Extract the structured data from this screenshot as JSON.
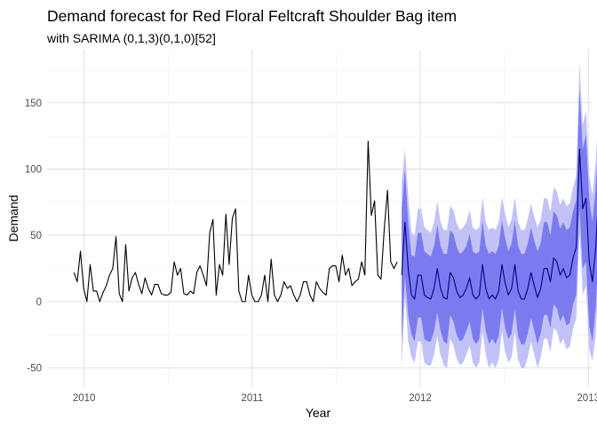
{
  "chart_data": {
    "type": "line",
    "title": "Demand forecast for Red Floral Feltcraft Shoulder Bag item",
    "subtitle": "with SARIMA (0,1,3)(0,1,0)[52]",
    "xlabel": "Year",
    "ylabel": "Demand",
    "xlim": [
      2009.78,
      2013.02
    ],
    "ylim": [
      -65,
      190
    ],
    "x_ticks": [
      2010,
      2011,
      2012,
      2013
    ],
    "y_ticks": [
      -50,
      0,
      50,
      100,
      150
    ],
    "grid": true,
    "legend": "none",
    "colors": {
      "history": "#000000",
      "forecast": "#00008b",
      "ci80": "#7b7bef",
      "ci95": "#c2c2f7",
      "grid_major": "#e0e0e0",
      "grid_minor": "#efefef"
    },
    "history": {
      "start": 2009.94,
      "step": 0.01923,
      "values": [
        22,
        15,
        38,
        10,
        0,
        28,
        8,
        8,
        0,
        7,
        12,
        20,
        25,
        49,
        6,
        0,
        43,
        8,
        18,
        22,
        13,
        6,
        18,
        10,
        5,
        13,
        13,
        6,
        5,
        5,
        7,
        30,
        20,
        25,
        6,
        5,
        8,
        6,
        22,
        27,
        20,
        12,
        52,
        62,
        5,
        28,
        20,
        66,
        28,
        63,
        70,
        8,
        0,
        0,
        20,
        5,
        0,
        0,
        5,
        20,
        0,
        32,
        5,
        0,
        5,
        15,
        10,
        12,
        5,
        0,
        5,
        15,
        15,
        5,
        0,
        15,
        10,
        7,
        5,
        25,
        27,
        27,
        15,
        35,
        20,
        25,
        12,
        15,
        17,
        30,
        20,
        121,
        65,
        76,
        20,
        17,
        55,
        84,
        30,
        25,
        30
      ]
    },
    "forecast": {
      "start": 2011.89,
      "step": 0.01923,
      "mean": [
        20,
        60,
        25,
        5,
        2,
        20,
        20,
        5,
        3,
        2,
        10,
        25,
        10,
        3,
        2,
        22,
        18,
        8,
        3,
        5,
        10,
        18,
        5,
        2,
        5,
        28,
        10,
        2,
        5,
        2,
        8,
        28,
        14,
        5,
        10,
        28,
        8,
        2,
        2,
        10,
        22,
        12,
        3,
        10,
        25,
        25,
        15,
        33,
        30,
        20,
        25,
        18,
        20,
        33,
        41,
        115,
        70,
        78,
        30,
        15,
        40,
        85,
        60,
        30,
        30
      ],
      "lo80": [
        -30,
        20,
        -10,
        -25,
        -30,
        -12,
        -12,
        -28,
        -30,
        -30,
        -22,
        -8,
        -22,
        -30,
        -32,
        -10,
        -15,
        -25,
        -30,
        -28,
        -22,
        -15,
        -28,
        -32,
        -28,
        -5,
        -22,
        -32,
        -28,
        -32,
        -26,
        -5,
        -20,
        -28,
        -24,
        -5,
        -26,
        -32,
        -32,
        -24,
        -12,
        -22,
        -32,
        -24,
        -10,
        -10,
        -20,
        -2,
        -5,
        -15,
        -10,
        -18,
        -16,
        -2,
        5,
        70,
        25,
        30,
        -18,
        -30,
        -5,
        40,
        15,
        -15,
        -15
      ],
      "hi80": [
        70,
        100,
        60,
        35,
        34,
        52,
        52,
        38,
        36,
        34,
        42,
        58,
        42,
        36,
        36,
        54,
        51,
        41,
        36,
        38,
        42,
        51,
        38,
        36,
        38,
        61,
        42,
        36,
        38,
        36,
        42,
        61,
        48,
        38,
        44,
        61,
        42,
        36,
        36,
        44,
        56,
        46,
        38,
        44,
        60,
        60,
        50,
        68,
        65,
        55,
        60,
        54,
        56,
        68,
        77,
        160,
        115,
        126,
        78,
        60,
        85,
        130,
        105,
        75,
        75
      ],
      "lo95": [
        -50,
        5,
        -30,
        -42,
        -46,
        -30,
        -30,
        -46,
        -48,
        -48,
        -40,
        -26,
        -40,
        -48,
        -50,
        -28,
        -33,
        -43,
        -48,
        -46,
        -40,
        -33,
        -46,
        -50,
        -46,
        -22,
        -40,
        -50,
        -46,
        -50,
        -44,
        -22,
        -38,
        -46,
        -42,
        -22,
        -44,
        -50,
        -50,
        -42,
        -30,
        -40,
        -50,
        -42,
        -28,
        -28,
        -38,
        -20,
        -22,
        -32,
        -28,
        -36,
        -34,
        -20,
        -13,
        52,
        5,
        12,
        -36,
        -45,
        -25,
        22,
        -5,
        -33,
        -33
      ],
      "hi95": [
        90,
        115,
        80,
        52,
        50,
        70,
        70,
        56,
        54,
        52,
        60,
        76,
        60,
        54,
        54,
        72,
        69,
        59,
        54,
        56,
        60,
        69,
        56,
        54,
        56,
        79,
        60,
        54,
        56,
        54,
        60,
        79,
        66,
        56,
        62,
        79,
        60,
        54,
        54,
        62,
        74,
        64,
        56,
        62,
        78,
        78,
        68,
        86,
        83,
        73,
        78,
        72,
        74,
        86,
        95,
        180,
        133,
        144,
        96,
        80,
        105,
        148,
        123,
        93,
        95
      ]
    }
  }
}
